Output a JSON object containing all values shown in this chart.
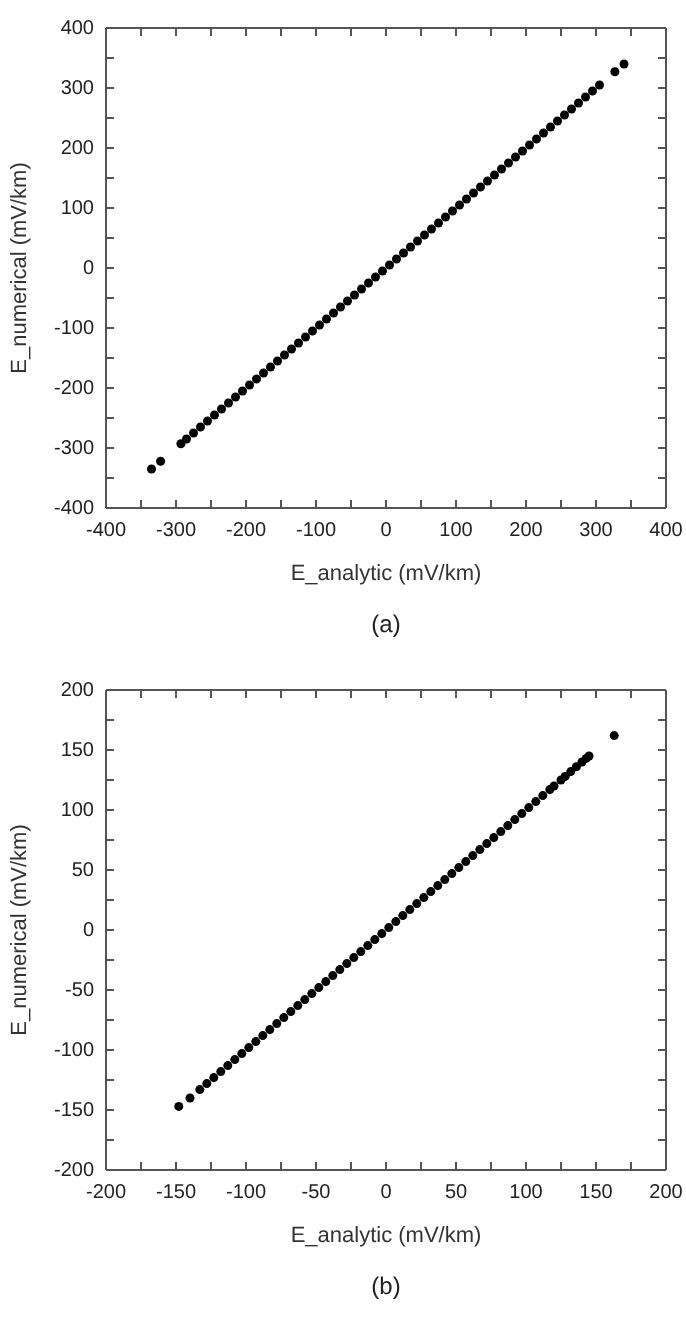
{
  "chart_data": [
    {
      "type": "scatter",
      "xlabel": "E_analytic (mV/km)",
      "ylabel": "E_numerical (mV/km)",
      "annotations": [
        "(a)"
      ],
      "marker": "circle",
      "grid": false,
      "xlim": [
        -400,
        400
      ],
      "ylim": [
        -400,
        400
      ],
      "xticks": [
        -400,
        {
          "value": -350,
          "label": null
        },
        -300,
        {
          "value": -250,
          "label": null
        },
        -200,
        {
          "value": -150,
          "label": null
        },
        -100,
        {
          "value": -50,
          "label": null
        },
        0,
        {
          "value": 50,
          "label": null
        },
        100,
        {
          "value": 150,
          "label": null
        },
        200,
        {
          "value": 250,
          "label": null
        },
        300,
        {
          "value": 350,
          "label": null
        },
        400
      ],
      "yticks": [
        -400,
        {
          "value": -350,
          "label": null
        },
        -300,
        {
          "value": -250,
          "label": null
        },
        -200,
        {
          "value": -150,
          "label": null
        },
        -100,
        {
          "value": -50,
          "label": null
        },
        0,
        {
          "value": 50,
          "label": null
        },
        100,
        {
          "value": 150,
          "label": null
        },
        200,
        {
          "value": 250,
          "label": null
        },
        300,
        {
          "value": 350,
          "label": null
        },
        400
      ],
      "series": [
        {
          "color": "#000000",
          "x": [
            -335,
            -322,
            -293,
            -285,
            -275,
            -265,
            -255,
            -245,
            -235,
            -225,
            -215,
            -205,
            -195,
            -185,
            -175,
            -165,
            -155,
            -145,
            -135,
            -125,
            -115,
            -105,
            -95,
            -85,
            -75,
            -65,
            -55,
            -45,
            -35,
            -25,
            -15,
            -5,
            5,
            15,
            25,
            35,
            45,
            55,
            65,
            75,
            85,
            95,
            105,
            115,
            125,
            135,
            145,
            155,
            165,
            175,
            185,
            195,
            205,
            215,
            225,
            235,
            245,
            255,
            265,
            275,
            285,
            295,
            305,
            327,
            340
          ],
          "values": [
            -335,
            -322,
            -293,
            -285,
            -275,
            -265,
            -255,
            -245,
            -235,
            -225,
            -215,
            -205,
            -195,
            -185,
            -175,
            -165,
            -155,
            -145,
            -135,
            -125,
            -115,
            -105,
            -95,
            -85,
            -75,
            -65,
            -55,
            -45,
            -35,
            -25,
            -15,
            -5,
            5,
            15,
            25,
            35,
            45,
            55,
            65,
            75,
            85,
            95,
            105,
            115,
            125,
            135,
            145,
            155,
            165,
            175,
            185,
            195,
            205,
            215,
            225,
            235,
            245,
            255,
            265,
            275,
            285,
            295,
            305,
            327,
            340
          ]
        }
      ]
    },
    {
      "type": "scatter",
      "xlabel": "E_analytic (mV/km)",
      "ylabel": "E_numerical (mV/km)",
      "annotations": [
        "(b)"
      ],
      "marker": "circle",
      "grid": false,
      "xlim": [
        -200,
        200
      ],
      "ylim": [
        -200,
        200
      ],
      "xticks": [
        -200,
        {
          "value": -175,
          "label": null
        },
        -150,
        {
          "value": -125,
          "label": null
        },
        -100,
        {
          "value": -75,
          "label": null
        },
        -50,
        {
          "value": -25,
          "label": null
        },
        0,
        {
          "value": 25,
          "label": null
        },
        50,
        {
          "value": 75,
          "label": null
        },
        100,
        {
          "value": 125,
          "label": null
        },
        150,
        {
          "value": 175,
          "label": null
        },
        200
      ],
      "yticks": [
        -200,
        {
          "value": -175,
          "label": null
        },
        -150,
        {
          "value": -125,
          "label": null
        },
        -100,
        {
          "value": -75,
          "label": null
        },
        -50,
        {
          "value": -25,
          "label": null
        },
        0,
        {
          "value": 25,
          "label": null
        },
        50,
        {
          "value": 75,
          "label": null
        },
        100,
        {
          "value": 125,
          "label": null
        },
        150,
        {
          "value": 175,
          "label": null
        },
        200
      ],
      "series": [
        {
          "color": "#000000",
          "x": [
            -148,
            -140,
            -133,
            -128,
            -123,
            -118,
            -113,
            -108,
            -103,
            -98,
            -93,
            -88,
            -83,
            -78,
            -73,
            -68,
            -63,
            -58,
            -53,
            -48,
            -43,
            -38,
            -33,
            -28,
            -23,
            -18,
            -13,
            -8,
            -3,
            2,
            7,
            12,
            17,
            22,
            27,
            32,
            37,
            42,
            47,
            52,
            57,
            62,
            67,
            72,
            77,
            82,
            87,
            92,
            97,
            102,
            107,
            112,
            117,
            120,
            125,
            128,
            132,
            136,
            140,
            143,
            145,
            163
          ],
          "values": [
            -147,
            -140,
            -133,
            -128,
            -123,
            -118,
            -113,
            -108,
            -103,
            -98,
            -93,
            -88,
            -83,
            -78,
            -73,
            -68,
            -63,
            -58,
            -53,
            -48,
            -43,
            -38,
            -33,
            -28,
            -23,
            -18,
            -13,
            -8,
            -3,
            2,
            7,
            12,
            17,
            22,
            27,
            32,
            37,
            42,
            47,
            52,
            57,
            62,
            67,
            72,
            77,
            82,
            87,
            92,
            97,
            102,
            107,
            112,
            117,
            120,
            125,
            128,
            132,
            136,
            140,
            143,
            145,
            162
          ]
        }
      ]
    }
  ]
}
